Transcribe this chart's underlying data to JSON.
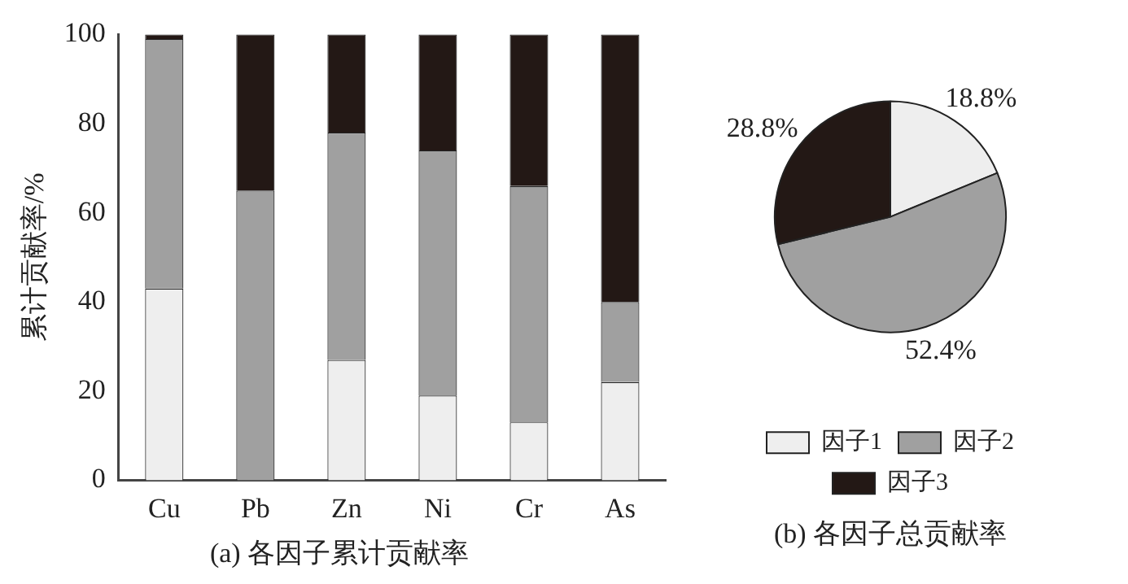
{
  "chart_data": [
    {
      "type": "bar",
      "title": "(a) 各因子累计贡献率",
      "ylabel": "累计贡献率/%",
      "categories": [
        "Cu",
        "Pb",
        "Zn",
        "Ni",
        "Cr",
        "As"
      ],
      "stacked": true,
      "ylim": [
        0,
        100
      ],
      "yticks": [
        0,
        20,
        40,
        60,
        80,
        100
      ],
      "grid": false,
      "legend": false,
      "series": [
        {
          "color": "#eeeeee",
          "values": [
            43,
            0,
            27,
            19,
            13,
            22
          ]
        },
        {
          "color": "#a0a0a0",
          "values": [
            56,
            65,
            51,
            55,
            53,
            18
          ]
        },
        {
          "color": "#231815",
          "values": [
            1,
            35,
            22,
            26,
            34,
            60
          ]
        }
      ]
    },
    {
      "type": "pie",
      "title": "(b) 各因子总贡献率",
      "categories": [
        "因子1",
        "因子2",
        "因子3"
      ],
      "values": [
        18.8,
        52.4,
        28.8
      ],
      "colors": [
        "#eeeeee",
        "#a0a0a0",
        "#231815"
      ],
      "value_labels": [
        "18.8%",
        "52.4%",
        "28.8%"
      ],
      "legend": "bottom"
    }
  ]
}
